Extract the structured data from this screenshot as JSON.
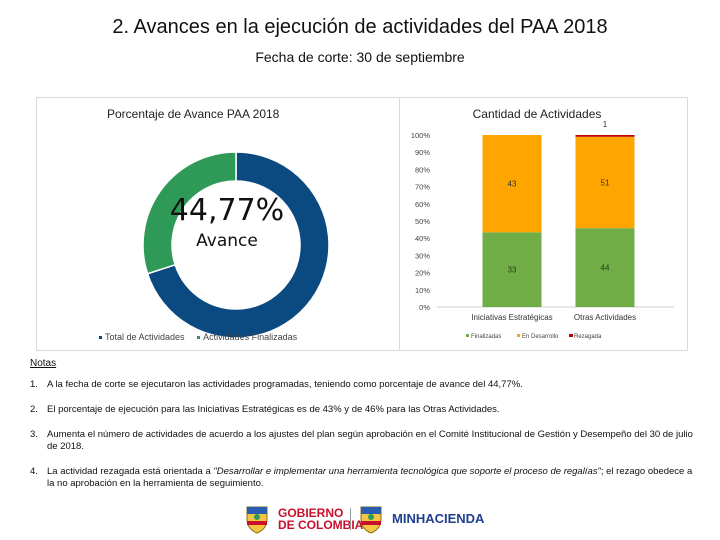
{
  "header": {
    "title": "2. Avances en la ejecución de actividades del PAA 2018",
    "subtitle": "Fecha de corte: 30 de septiembre"
  },
  "donut": {
    "title": "Porcentaje de Avance PAA 2018",
    "center_value": "44,77%",
    "center_label": "Avance",
    "legend": [
      "Total de Actividades",
      "Actividades Finalizadas"
    ],
    "colors": {
      "total": "#0b4a80",
      "finalizadas": "#2f9a57"
    }
  },
  "chart_data": [
    {
      "type": "pie",
      "title": "Porcentaje de Avance PAA 2018",
      "labels": [
        "Total de Actividades",
        "Actividades Finalizadas"
      ],
      "values": [
        70,
        30
      ],
      "colors": [
        "#0b4a80",
        "#2f9a57"
      ],
      "hole": true,
      "center_text": "44,77% Avance",
      "legend_position": "bottom"
    },
    {
      "type": "bar",
      "stacked": "percent",
      "title": "Cantidad de Actividades",
      "categories": [
        "Iniciativas Estratégicas",
        "Otras Actividades"
      ],
      "series": [
        {
          "name": "Finalizadas",
          "values": [
            33,
            44
          ],
          "color": "#70ad47"
        },
        {
          "name": "En Desarrollo",
          "values": [
            43,
            51
          ],
          "color": "#ffa500"
        },
        {
          "name": "Rezagada",
          "values": [
            0,
            1
          ],
          "color": "#c00000"
        }
      ],
      "data_labels": [
        {
          "series": "Finalizadas",
          "category": "Iniciativas Estratégicas",
          "text": "33"
        },
        {
          "series": "Finalizadas",
          "category": "Otras Actividades",
          "text": "44"
        },
        {
          "series": "En Desarrollo",
          "category": "Iniciativas Estratégicas",
          "text": "43"
        },
        {
          "series": "En Desarrollo",
          "category": "Otras Actividades",
          "text": "51"
        },
        {
          "series": "Rezagada",
          "category": "Otras Actividades",
          "text": "1"
        }
      ],
      "y_ticks": [
        "0%",
        "10%",
        "20%",
        "30%",
        "40%",
        "50%",
        "60%",
        "70%",
        "80%",
        "90%",
        "100%"
      ],
      "ylim": [
        0,
        100
      ],
      "grid": false,
      "legend_position": "bottom"
    }
  ],
  "notes": {
    "title": "Notas",
    "items": [
      {
        "num": "1.",
        "text": "A la fecha de corte se ejecutaron las actividades programadas, teniendo como porcentaje de avance del 44,77%."
      },
      {
        "num": "2.",
        "text": "El porcentaje de ejecución para las Iniciativas Estratégicas es de 43% y de 46% para las Otras Actividades."
      },
      {
        "num": "3.",
        "text": "Aumenta el número de actividades de acuerdo a los ajustes del plan según aprobación en el Comité Institucional de Gestión y Desempeño del 30 de julio de 2018."
      }
    ],
    "item4": {
      "num": "4.",
      "before": "La actividad rezagada está orientada a ",
      "italic": "\"Desarrollar e implementar una herramienta tecnológica que soporte el proceso de regalías\"",
      "after": "; el rezago obedece a la no aprobación en la herramienta de seguimiento."
    }
  },
  "footer": {
    "logo1_line1": "GOBIERNO",
    "logo1_line2": "DE COLOMBIA",
    "logo2": "MINHACIENDA",
    "colors": {
      "gov_red": "#c8102e",
      "min_blue": "#1f3f8f"
    }
  }
}
